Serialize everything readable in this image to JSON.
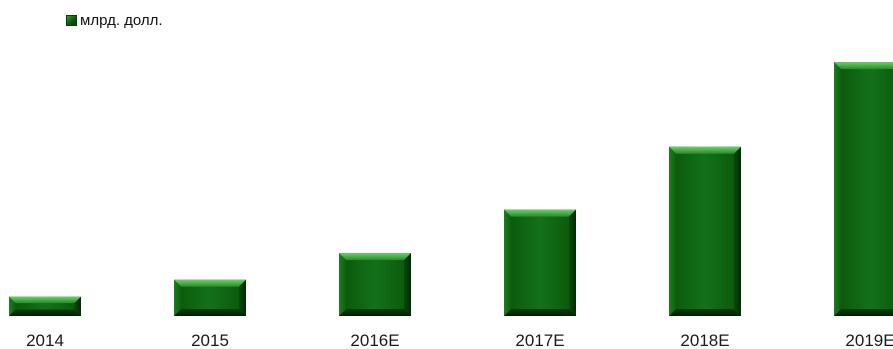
{
  "chart_data": {
    "type": "bar",
    "categories": [
      "2014",
      "2015",
      "2016E",
      "2017E",
      "2018E",
      "2019E"
    ],
    "series": [
      {
        "name": "млрд. долл.",
        "values": [
          4,
          7.5,
          13,
          22,
          35,
          52.5
        ]
      }
    ],
    "ylim": [
      0,
      55
    ],
    "grid": false,
    "legend_position": "top-left",
    "colors": {
      "bar_face": "#0f650f",
      "bar_light": "#4fb24f",
      "bar_dark": "#022d02"
    }
  }
}
